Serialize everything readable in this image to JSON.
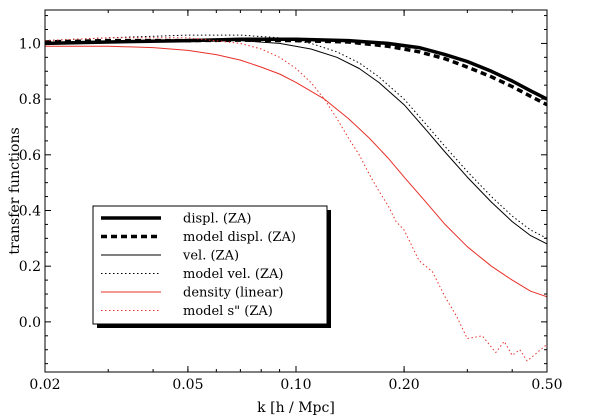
{
  "chart_data": {
    "type": "line",
    "title": "",
    "xlabel": "k [h / Mpc]",
    "ylabel": "transfer functions",
    "xscale": "log",
    "xlim": [
      0.02,
      0.5
    ],
    "ylim": [
      -0.18,
      1.12
    ],
    "xticks": [
      {
        "value": 0.02,
        "label": "0.02"
      },
      {
        "value": 0.05,
        "label": "0.05"
      },
      {
        "value": 0.1,
        "label": "0.10"
      },
      {
        "value": 0.2,
        "label": "0.20"
      },
      {
        "value": 0.5,
        "label": "0.50"
      }
    ],
    "yticks": [
      {
        "value": 0.0,
        "label": "0.0"
      },
      {
        "value": 0.2,
        "label": "0.2"
      },
      {
        "value": 0.4,
        "label": "0.4"
      },
      {
        "value": 0.6,
        "label": "0.6"
      },
      {
        "value": 0.8,
        "label": "0.8"
      },
      {
        "value": 1.0,
        "label": "1.0"
      }
    ],
    "grid": false,
    "legend_position": "lower-left",
    "series": [
      {
        "name": "displ. (ZA)",
        "color": "#000000",
        "style": "solid",
        "weight": "thick",
        "x": [
          0.02,
          0.03,
          0.05,
          0.07,
          0.1,
          0.14,
          0.18,
          0.22,
          0.26,
          0.3,
          0.35,
          0.4,
          0.45,
          0.5
        ],
        "y": [
          1.0,
          1.005,
          1.01,
          1.015,
          1.015,
          1.01,
          1.0,
          0.985,
          0.96,
          0.935,
          0.9,
          0.865,
          0.83,
          0.8
        ]
      },
      {
        "name": "model displ. (ZA)",
        "color": "#000000",
        "style": "dashed",
        "weight": "thick",
        "x": [
          0.02,
          0.03,
          0.05,
          0.07,
          0.1,
          0.14,
          0.18,
          0.22,
          0.26,
          0.3,
          0.35,
          0.4,
          0.45,
          0.5
        ],
        "y": [
          1.005,
          1.01,
          1.01,
          1.012,
          1.01,
          1.005,
          0.99,
          0.97,
          0.945,
          0.915,
          0.88,
          0.845,
          0.81,
          0.78
        ]
      },
      {
        "name": "vel. (ZA)",
        "color": "#000000",
        "style": "solid",
        "weight": "thin",
        "x": [
          0.02,
          0.03,
          0.05,
          0.07,
          0.09,
          0.11,
          0.13,
          0.15,
          0.17,
          0.2,
          0.23,
          0.26,
          0.3,
          0.35,
          0.4,
          0.45,
          0.5
        ],
        "y": [
          1.0,
          1.005,
          1.01,
          1.01,
          1.0,
          0.98,
          0.95,
          0.91,
          0.86,
          0.78,
          0.69,
          0.61,
          0.52,
          0.43,
          0.36,
          0.31,
          0.28
        ]
      },
      {
        "name": "model vel. (ZA)",
        "color": "#000000",
        "style": "dotted",
        "weight": "thin",
        "x": [
          0.02,
          0.03,
          0.05,
          0.07,
          0.09,
          0.11,
          0.13,
          0.15,
          0.17,
          0.2,
          0.23,
          0.26,
          0.3,
          0.35,
          0.4,
          0.45,
          0.5
        ],
        "y": [
          1.01,
          1.02,
          1.03,
          1.03,
          1.02,
          1.0,
          0.97,
          0.93,
          0.88,
          0.8,
          0.71,
          0.63,
          0.54,
          0.45,
          0.38,
          0.33,
          0.3
        ]
      },
      {
        "name": "density (linear)",
        "color": "#e8302a",
        "style": "solid",
        "weight": "thin",
        "x": [
          0.02,
          0.03,
          0.04,
          0.05,
          0.06,
          0.07,
          0.08,
          0.09,
          0.1,
          0.12,
          0.14,
          0.16,
          0.18,
          0.2,
          0.23,
          0.26,
          0.3,
          0.35,
          0.4,
          0.45,
          0.5
        ],
        "y": [
          0.99,
          0.99,
          0.985,
          0.975,
          0.96,
          0.94,
          0.915,
          0.89,
          0.86,
          0.8,
          0.73,
          0.66,
          0.59,
          0.52,
          0.43,
          0.35,
          0.27,
          0.2,
          0.15,
          0.11,
          0.09
        ]
      },
      {
        "name": "model s\" (ZA)",
        "color": "#e8302a",
        "style": "dotted",
        "weight": "thin",
        "x": [
          0.02,
          0.03,
          0.05,
          0.07,
          0.08,
          0.09,
          0.1,
          0.11,
          0.12,
          0.13,
          0.14,
          0.15,
          0.16,
          0.17,
          0.18,
          0.19,
          0.2,
          0.22,
          0.24,
          0.26,
          0.28,
          0.3,
          0.33,
          0.36,
          0.38,
          0.4,
          0.42,
          0.44,
          0.46,
          0.48,
          0.5
        ],
        "y": [
          1.01,
          1.02,
          1.02,
          1.0,
          0.98,
          0.95,
          0.91,
          0.86,
          0.8,
          0.73,
          0.66,
          0.6,
          0.53,
          0.47,
          0.42,
          0.36,
          0.33,
          0.22,
          0.18,
          0.09,
          0.02,
          -0.06,
          -0.05,
          -0.11,
          -0.07,
          -0.12,
          -0.1,
          -0.14,
          -0.12,
          -0.1,
          -0.08
        ]
      }
    ]
  }
}
